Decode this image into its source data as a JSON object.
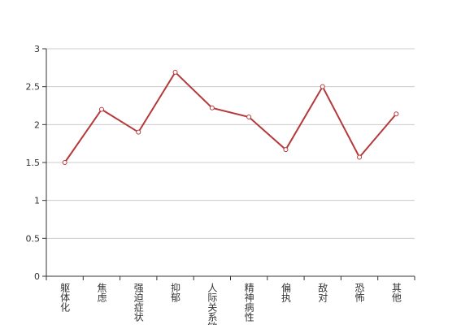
{
  "chart_data": {
    "type": "line",
    "categories": [
      "躯体化",
      "焦虑",
      "强迫症状",
      "抑郁",
      "人际关系敏感",
      "精神病性",
      "偏执",
      "敌对",
      "恐怖",
      "其他"
    ],
    "series": [
      {
        "color": "#b5393a",
        "values": [
          1.5,
          2.2,
          1.9,
          2.69,
          2.22,
          2.1,
          1.67,
          2.5,
          1.57,
          2.14
        ]
      }
    ],
    "ylim": [
      0,
      3
    ],
    "yticks": [
      0,
      0.5,
      1,
      1.5,
      2,
      2.5,
      3
    ],
    "grid": true
  }
}
